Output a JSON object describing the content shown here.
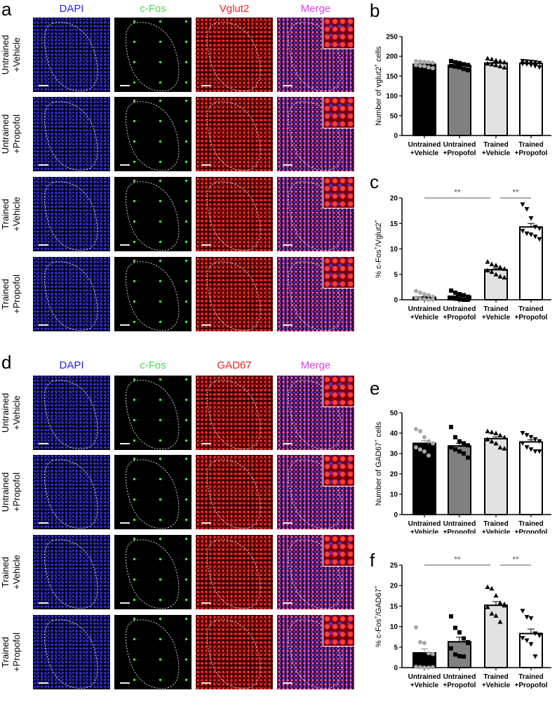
{
  "panels": {
    "a": "a",
    "b": "b",
    "c": "c",
    "d": "d",
    "e": "e",
    "f": "f"
  },
  "micro_a": {
    "columns": [
      "DAPI",
      "c-Fos",
      "Vglut2",
      "Merge"
    ],
    "column_colors": [
      "#2020ff",
      "#40e040",
      "#ff2020",
      "#e040e0"
    ]
  },
  "micro_d": {
    "columns": [
      "DAPI",
      "c-Fos",
      "GAD67",
      "Merge"
    ],
    "column_colors": [
      "#2020ff",
      "#40e040",
      "#ff2020",
      "#e040e0"
    ]
  },
  "rows": [
    [
      "Untrained",
      "+Vehicle"
    ],
    [
      "Untrained",
      "+Propofol"
    ],
    [
      "Trained",
      "+Vehicle"
    ],
    [
      "Trained",
      "+Propofol"
    ]
  ],
  "chart_data": [
    {
      "id": "b",
      "type": "bar",
      "categories": [
        [
          "Untrained",
          "+Vehicle"
        ],
        [
          "Untrained",
          "+Propofol"
        ],
        [
          "Trained",
          "+Vehicle"
        ],
        [
          "Trained",
          "+Propofol"
        ]
      ],
      "ylabel": [
        "Number of vglut2",
        "+",
        " cells"
      ],
      "ylim": [
        0,
        250
      ],
      "yticks": [
        0,
        50,
        100,
        150,
        200,
        250
      ],
      "values": [
        180,
        177,
        183,
        182
      ],
      "sem": [
        2,
        2,
        2,
        1.5
      ],
      "points": [
        [
          188,
          187,
          186,
          185,
          184,
          178,
          176,
          175,
          172,
          170
        ],
        [
          188,
          185,
          183,
          180,
          178,
          176,
          174,
          172,
          168,
          165
        ],
        [
          195,
          193,
          190,
          188,
          185,
          182,
          180,
          178,
          175,
          172
        ],
        [
          188,
          187,
          186,
          185,
          183,
          181,
          180,
          178,
          175,
          172
        ]
      ],
      "significance": []
    },
    {
      "id": "c",
      "type": "bar",
      "categories": [
        [
          "Untrained",
          "+Vehicle"
        ],
        [
          "Untrained",
          "+Propofol"
        ],
        [
          "Trained",
          "+Vehicle"
        ],
        [
          "Trained",
          "+Propofol"
        ]
      ],
      "ylabel": [
        "% c-Fos",
        "+",
        "/Vglut2",
        "+"
      ],
      "ylim": [
        0,
        20
      ],
      "yticks": [
        0,
        5,
        10,
        15,
        20
      ],
      "values": [
        0.5,
        0.7,
        5.9,
        14.3
      ],
      "sem": [
        0.2,
        0.2,
        0.3,
        0.7
      ],
      "points": [
        [
          1.7,
          1.4,
          1.1,
          0.9,
          0.6,
          0.4,
          0.2,
          0.1,
          0,
          0
        ],
        [
          1.8,
          1.4,
          1.1,
          0.9,
          0.6,
          0.4,
          0.2,
          0.1,
          0,
          0
        ],
        [
          7.5,
          7,
          6.8,
          6.4,
          6.1,
          5.8,
          5.5,
          5,
          4.6,
          4.4
        ],
        [
          18.7,
          17.8,
          16,
          14.3,
          14,
          13.5,
          13,
          12.8,
          12.4,
          11.9
        ]
      ],
      "significance": [
        {
          "from": 0,
          "to": 2,
          "label": "**"
        },
        {
          "from": 2,
          "to": 3,
          "label": "**"
        }
      ]
    },
    {
      "id": "e",
      "type": "bar",
      "categories": [
        [
          "Untrained",
          "+Vehicle"
        ],
        [
          "Untrained",
          "+Propofol"
        ],
        [
          "Trained",
          "+Vehicle"
        ],
        [
          "Trained",
          "+Propofol"
        ]
      ],
      "ylabel": [
        "Number of GAD67",
        "+",
        " cells"
      ],
      "ylim": [
        0,
        50
      ],
      "yticks": [
        0,
        10,
        20,
        30,
        40,
        50
      ],
      "values": [
        35,
        33.7,
        37.3,
        35.7
      ],
      "sem": [
        1.3,
        1.3,
        0.9,
        1
      ],
      "points": [
        [
          42,
          41,
          38,
          36,
          35,
          33,
          32,
          31,
          29,
          35
        ],
        [
          43,
          38,
          36,
          35,
          34,
          33,
          32,
          31,
          30,
          28
        ],
        [
          41,
          40.5,
          40,
          39,
          38,
          37,
          36,
          35,
          33,
          32.5
        ],
        [
          40,
          39,
          38,
          37,
          36,
          35,
          33,
          32,
          31,
          31
        ]
      ],
      "significance": []
    },
    {
      "id": "f",
      "type": "bar",
      "categories": [
        [
          "Untrained",
          "+Vehicle"
        ],
        [
          "Untrained",
          "+Propofol"
        ],
        [
          "Trained",
          "+Vehicle"
        ],
        [
          "Trained",
          "+Propofol"
        ]
      ],
      "ylabel": [
        "% c-Fos",
        "+",
        "/GAD67",
        "+"
      ],
      "ylim": [
        0,
        25
      ],
      "yticks": [
        0,
        5,
        10,
        15,
        20,
        25
      ],
      "values": [
        3.6,
        6.3,
        15.2,
        8.3
      ],
      "sem": [
        1,
        1.1,
        0.9,
        1.1
      ],
      "points": [
        [
          9.8,
          6.2,
          6,
          3.5,
          3.3,
          0.2,
          0.1,
          0,
          0,
          0.1
        ],
        [
          12.5,
          9.7,
          8.6,
          7.1,
          6.2,
          4.7,
          3.2,
          2.8,
          2.7,
          6
        ],
        [
          19.7,
          19.3,
          17.6,
          15.8,
          15.2,
          14.8,
          13.2,
          12.7,
          11.2,
          15.5
        ],
        [
          13.8,
          12.3,
          12,
          8.3,
          7.8,
          7.2,
          6.6,
          5.7,
          2.7,
          8
        ]
      ],
      "significance": [
        {
          "from": 0,
          "to": 2,
          "label": "**"
        },
        {
          "from": 2,
          "to": 3,
          "label": "**"
        }
      ]
    }
  ],
  "colors": {
    "bar_fills": [
      "#000000",
      "#808080",
      "#e2e2e2",
      "#ffffff"
    ],
    "point_fills": [
      "#a8a8a8",
      "#000000",
      "#000000",
      "#000000"
    ],
    "markers": [
      "circle",
      "square",
      "triangle-up",
      "triangle-down"
    ]
  }
}
